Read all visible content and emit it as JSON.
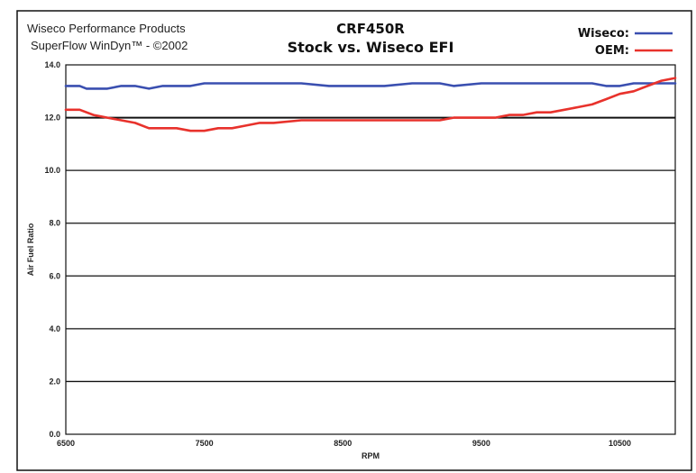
{
  "header": {
    "left_line1": "Wiseco Performance Products",
    "left_line2": "SuperFlow WinDyn™ - ©2002",
    "title": "CRF450R",
    "subtitle": "Stock vs. Wiseco EFI"
  },
  "colors": {
    "wiseco": "#3a4fb0",
    "oem": "#e8322c",
    "frame": "#111111",
    "grid": "#111111"
  },
  "chart_data": {
    "type": "line",
    "title": "CRF450R",
    "subtitle": "Stock vs. Wiseco EFI",
    "xlabel": "RPM",
    "ylabel": "Air Fuel Ratio",
    "xlim": [
      6500,
      10900
    ],
    "ylim": [
      0,
      14
    ],
    "xticks": [
      "6500",
      "7500",
      "8500",
      "9500",
      "10500"
    ],
    "xtick_values": [
      6500,
      7500,
      8500,
      9500,
      10500
    ],
    "yticks": [
      "0.0",
      "2.0",
      "4.0",
      "6.0",
      "8.0",
      "10.0",
      "12.0",
      "14.0"
    ],
    "ytick_values": [
      0,
      2,
      4,
      6,
      8,
      10,
      12,
      14
    ],
    "grid": "horizontal",
    "legend_position": "top-right",
    "series": [
      {
        "name": "Wiseco:",
        "x": [
          6500,
          6600,
          6650,
          6700,
          6800,
          6900,
          7000,
          7100,
          7200,
          7300,
          7400,
          7500,
          7600,
          7800,
          8000,
          8200,
          8400,
          8600,
          8800,
          9000,
          9200,
          9300,
          9500,
          9700,
          9900,
          10100,
          10200,
          10300,
          10400,
          10500,
          10600,
          10700,
          10800,
          10900
        ],
        "y": [
          13.2,
          13.2,
          13.1,
          13.1,
          13.1,
          13.2,
          13.2,
          13.1,
          13.2,
          13.2,
          13.2,
          13.3,
          13.3,
          13.3,
          13.3,
          13.3,
          13.2,
          13.2,
          13.2,
          13.3,
          13.3,
          13.2,
          13.3,
          13.3,
          13.3,
          13.3,
          13.3,
          13.3,
          13.2,
          13.2,
          13.3,
          13.3,
          13.3,
          13.3
        ]
      },
      {
        "name": "OEM:",
        "x": [
          6500,
          6600,
          6700,
          6800,
          6900,
          7000,
          7100,
          7200,
          7300,
          7400,
          7500,
          7600,
          7700,
          7800,
          7900,
          8000,
          8200,
          8400,
          8600,
          8800,
          9000,
          9200,
          9300,
          9500,
          9600,
          9700,
          9800,
          9900,
          10000,
          10100,
          10200,
          10300,
          10400,
          10500,
          10600,
          10700,
          10800,
          10900
        ],
        "y": [
          12.3,
          12.3,
          12.1,
          12.0,
          11.9,
          11.8,
          11.6,
          11.6,
          11.6,
          11.5,
          11.5,
          11.6,
          11.6,
          11.7,
          11.8,
          11.8,
          11.9,
          11.9,
          11.9,
          11.9,
          11.9,
          11.9,
          12.0,
          12.0,
          12.0,
          12.1,
          12.1,
          12.2,
          12.2,
          12.3,
          12.4,
          12.5,
          12.7,
          12.9,
          13.0,
          13.2,
          13.4,
          13.5
        ]
      }
    ]
  }
}
